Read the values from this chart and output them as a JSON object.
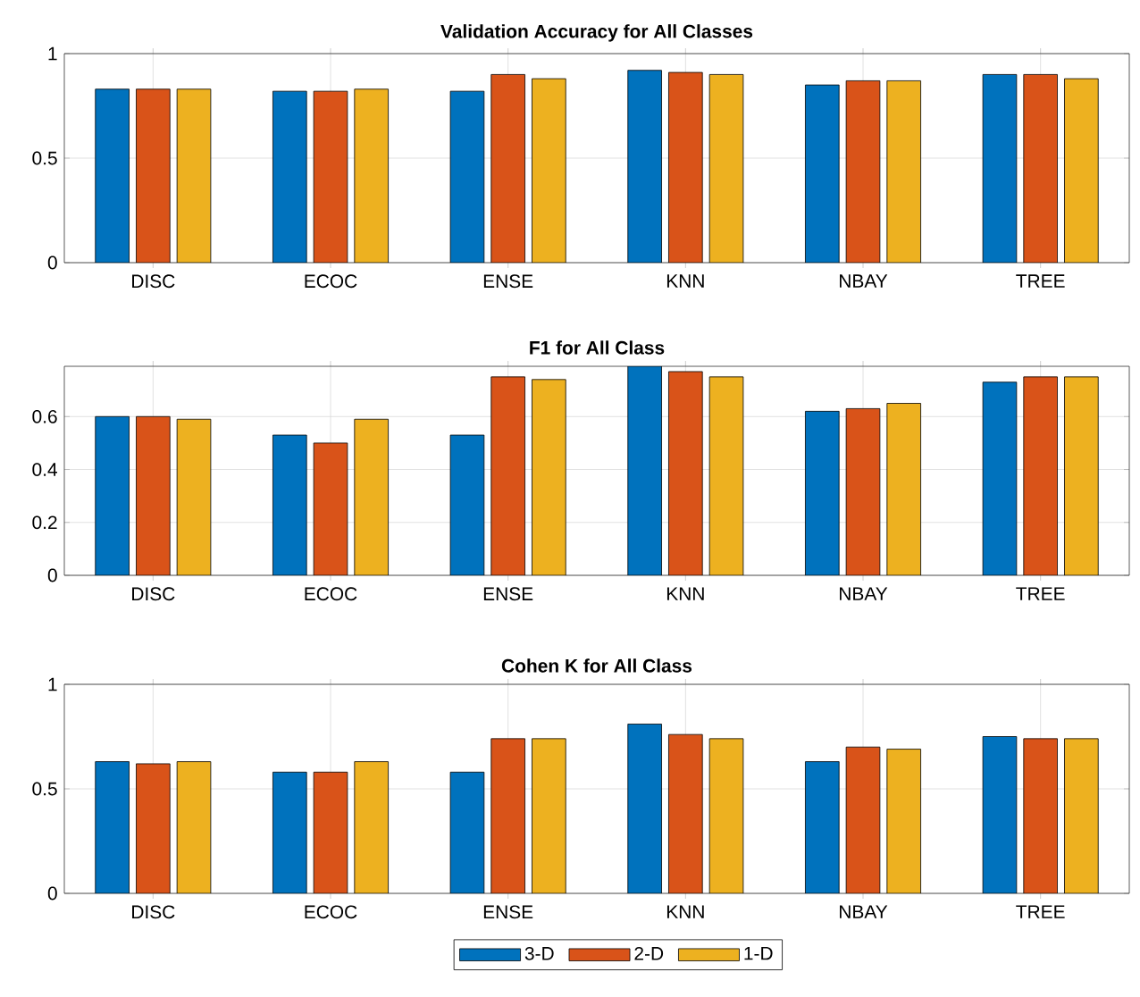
{
  "chart_data": [
    {
      "type": "bar",
      "title": "Validation Accuracy for All Classes",
      "categories": [
        "DISC",
        "ECOC",
        "ENSE",
        "KNN",
        "NBAY",
        "TREE"
      ],
      "ylim": [
        0,
        1
      ],
      "yticks": [
        0,
        0.5,
        1
      ],
      "grid": true,
      "series": [
        {
          "color": "#0072bd",
          "values": [
            0.83,
            0.82,
            0.82,
            0.92,
            0.85,
            0.9
          ]
        },
        {
          "color": "#d95319",
          "values": [
            0.83,
            0.82,
            0.9,
            0.91,
            0.87,
            0.9
          ]
        },
        {
          "color": "#edb120",
          "values": [
            0.83,
            0.83,
            0.88,
            0.9,
            0.87,
            0.88
          ]
        }
      ]
    },
    {
      "type": "bar",
      "title": "F1 for All Class",
      "categories": [
        "DISC",
        "ECOC",
        "ENSE",
        "KNN",
        "NBAY",
        "TREE"
      ],
      "ylim": [
        0,
        0.79
      ],
      "yticks": [
        0,
        0.2,
        0.4,
        0.6
      ],
      "grid": true,
      "series": [
        {
          "color": "#0072bd",
          "values": [
            0.6,
            0.53,
            0.53,
            0.79,
            0.62,
            0.73
          ]
        },
        {
          "color": "#d95319",
          "values": [
            0.6,
            0.5,
            0.75,
            0.77,
            0.63,
            0.75
          ]
        },
        {
          "color": "#edb120",
          "values": [
            0.59,
            0.59,
            0.74,
            0.75,
            0.65,
            0.75
          ]
        }
      ]
    },
    {
      "type": "bar",
      "title": "Cohen K for All Class",
      "categories": [
        "DISC",
        "ECOC",
        "ENSE",
        "KNN",
        "NBAY",
        "TREE"
      ],
      "ylim": [
        0,
        1
      ],
      "yticks": [
        0,
        0.5,
        1
      ],
      "grid": true,
      "legend": "bottom",
      "series": [
        {
          "name": "3-D",
          "color": "#0072bd",
          "values": [
            0.63,
            0.58,
            0.58,
            0.81,
            0.63,
            0.75
          ]
        },
        {
          "name": "2-D",
          "color": "#d95319",
          "values": [
            0.62,
            0.58,
            0.74,
            0.76,
            0.7,
            0.74
          ]
        },
        {
          "name": "1-D",
          "color": "#edb120",
          "values": [
            0.63,
            0.63,
            0.74,
            0.74,
            0.69,
            0.74
          ]
        }
      ]
    }
  ]
}
